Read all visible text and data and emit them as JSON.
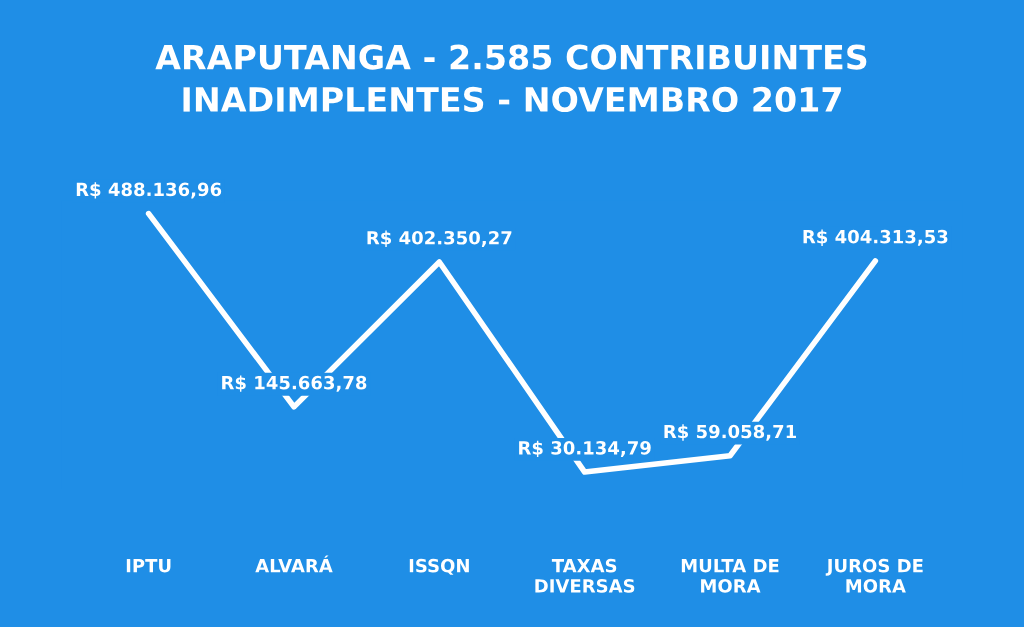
{
  "chart_data": {
    "type": "line",
    "title": "ARAPUTANGA - 2.585 CONTRIBUINTES\nINADIMPLENTES - NOVEMBRO 2017",
    "categories": [
      "IPTU",
      "ALVARÁ",
      "ISSQN",
      "TAXAS\nDIVERSAS",
      "MULTA DE\nMORA",
      "JUROS DE\nMORA"
    ],
    "series": [
      {
        "color": "#ffffff",
        "values": [
          488136.96,
          145663.78,
          402350.27,
          30134.79,
          59058.71,
          404313.53
        ],
        "value_labels": [
          "R$ 488.136,96",
          "R$ 145.663,78",
          "R$ 402.350,27",
          "R$ 30.134,79",
          "R$ 59.058,71",
          "R$ 404.313,53"
        ]
      }
    ],
    "grid": false,
    "legend": false,
    "marker": "none",
    "line_style": "solid"
  }
}
